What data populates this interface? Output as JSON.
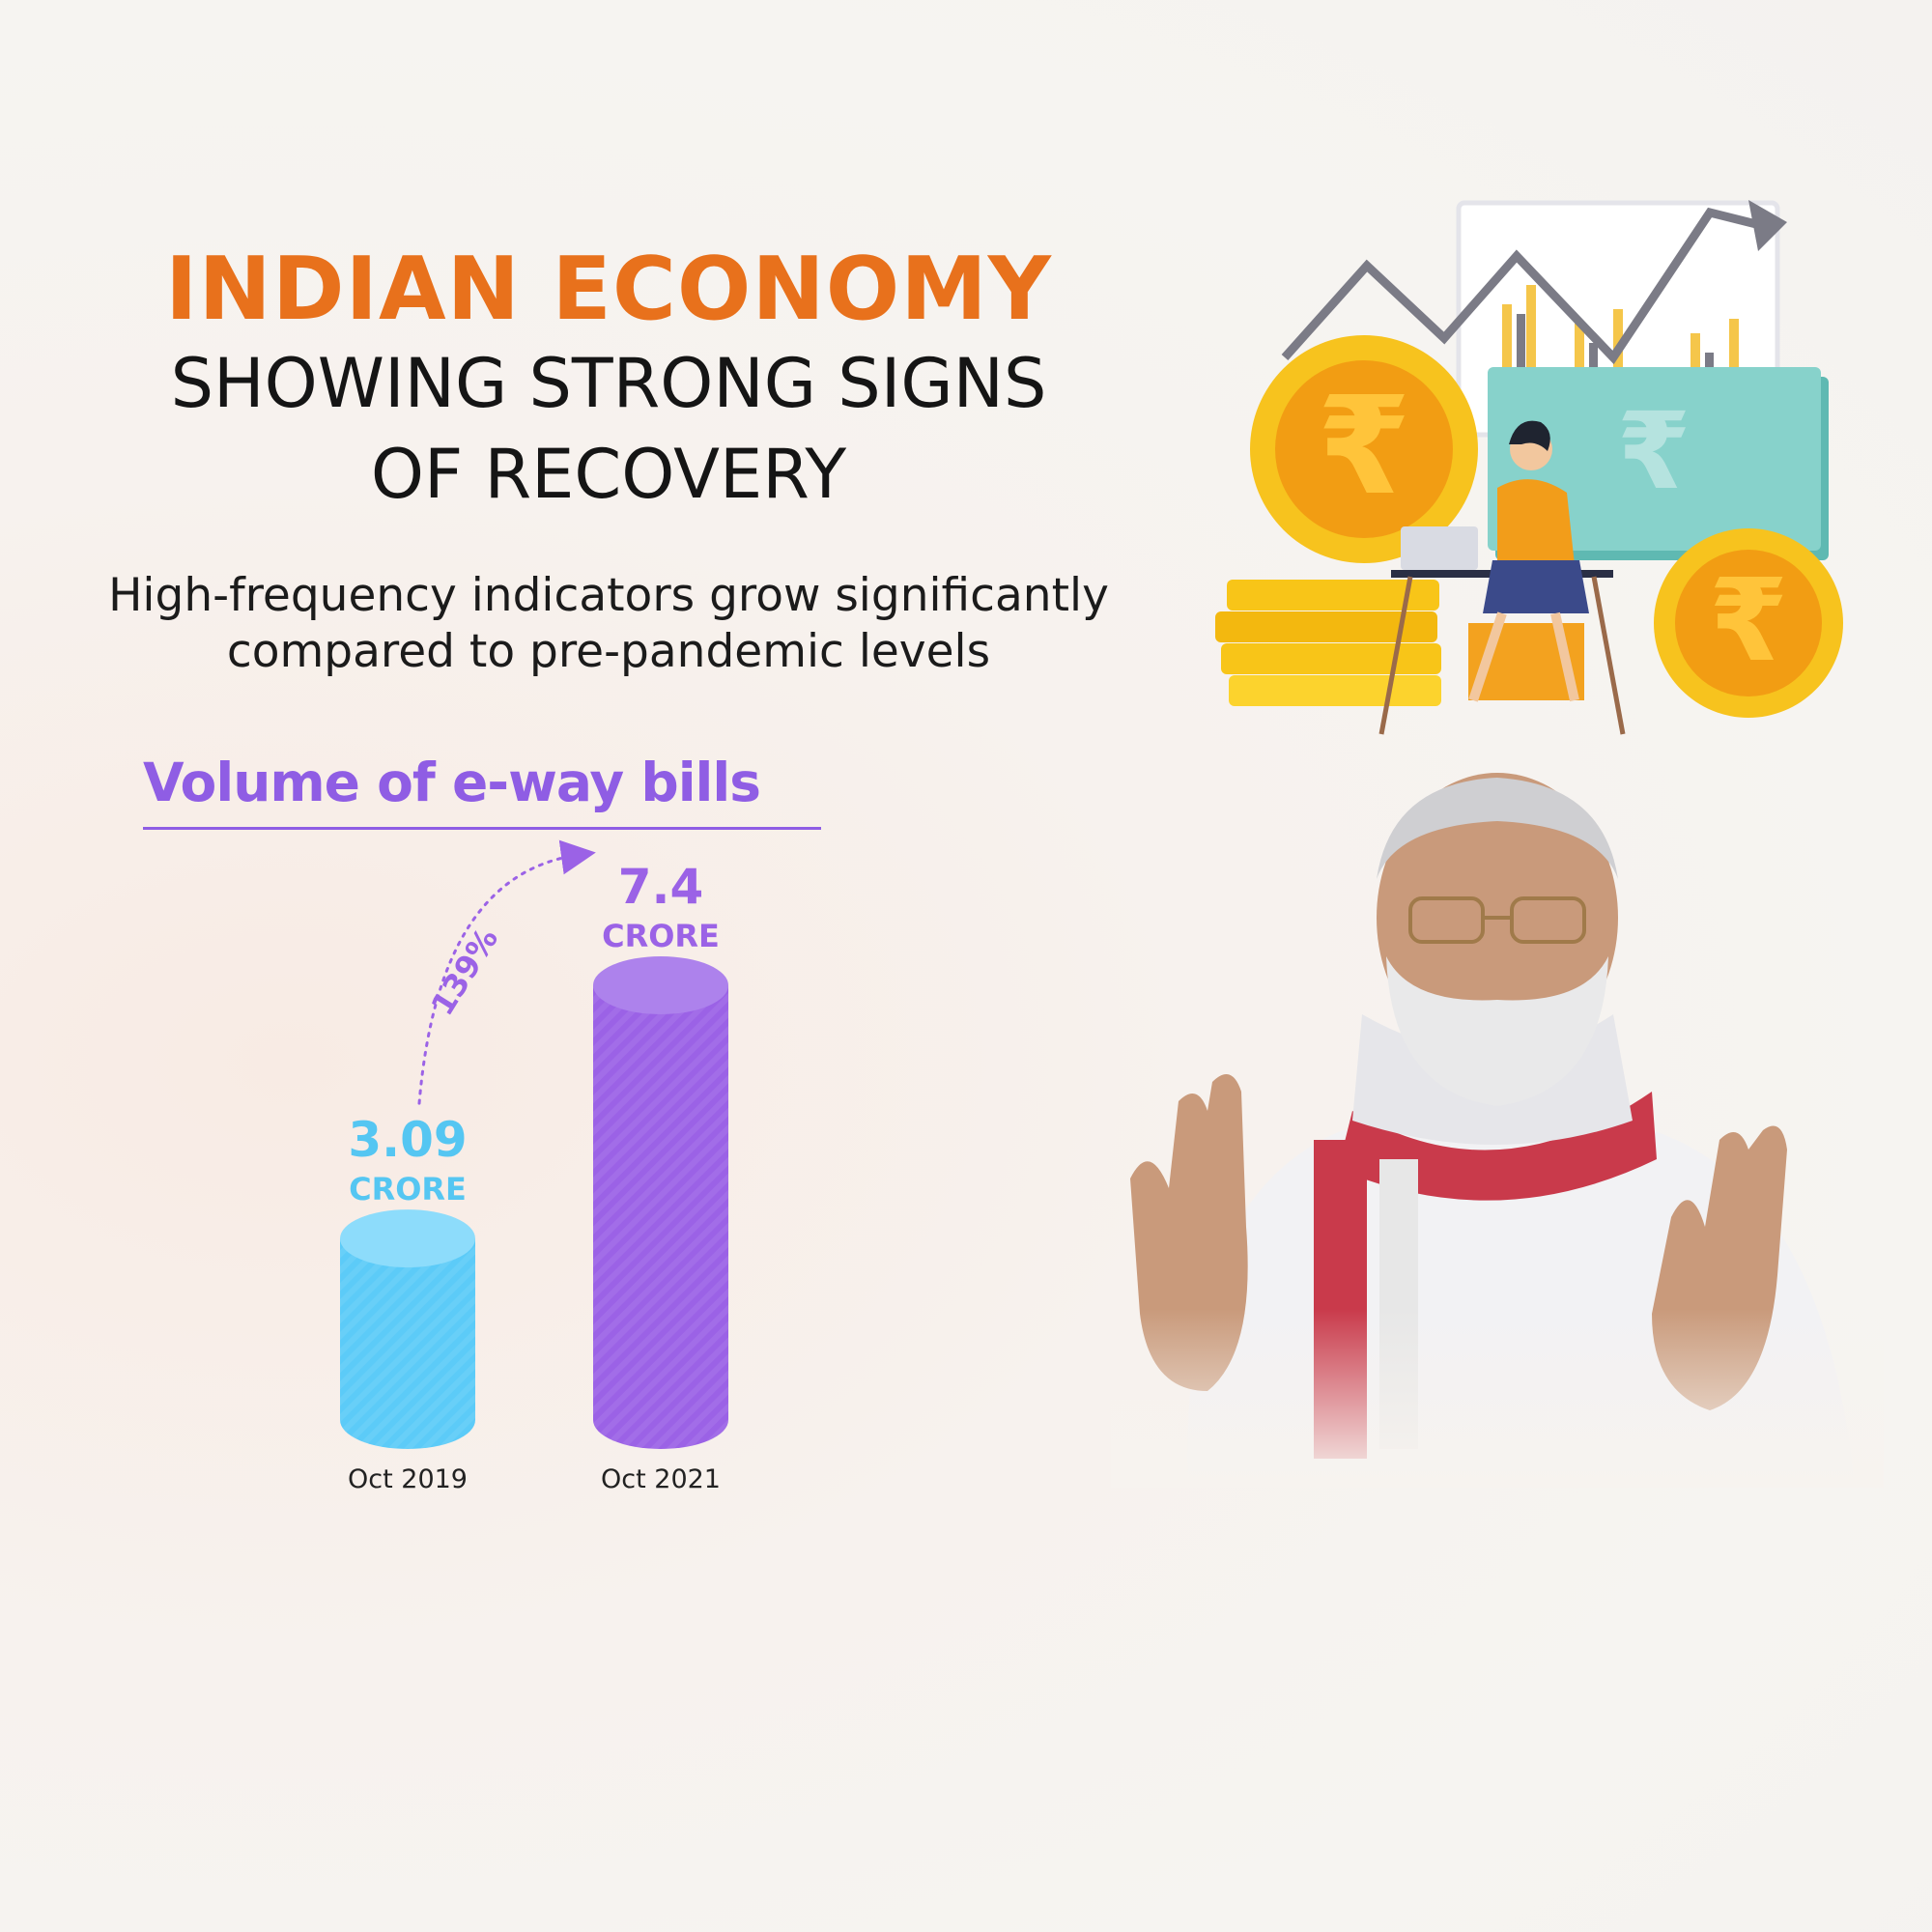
{
  "headline": {
    "title": "INDIAN ECONOMY",
    "subtitle_line1": "SHOWING STRONG SIGNS",
    "subtitle_line2": "OF RECOVERY"
  },
  "description": {
    "line1": "High-frequency indicators grow significantly",
    "line2": "compared to pre-pandemic levels"
  },
  "colors": {
    "title": "#e8711c",
    "chart_title": "#8f5de4",
    "bar_2019": "#5ccbf8",
    "bar_2021": "#9b62e6"
  },
  "icons": {
    "illustration": "finance-growth-illustration",
    "photo": "speaker-photo"
  },
  "chart_data": {
    "type": "bar",
    "title": "Volume of e-way bills",
    "categories": [
      "Oct 2019",
      "Oct 2021"
    ],
    "values": [
      3.09,
      7.4
    ],
    "value_labels": [
      "3.09",
      "7.4"
    ],
    "unit_label": "CRORE",
    "growth_annotation": "139%",
    "bar_style": "cylinder",
    "ylim": [
      0,
      8
    ],
    "grid": false
  }
}
